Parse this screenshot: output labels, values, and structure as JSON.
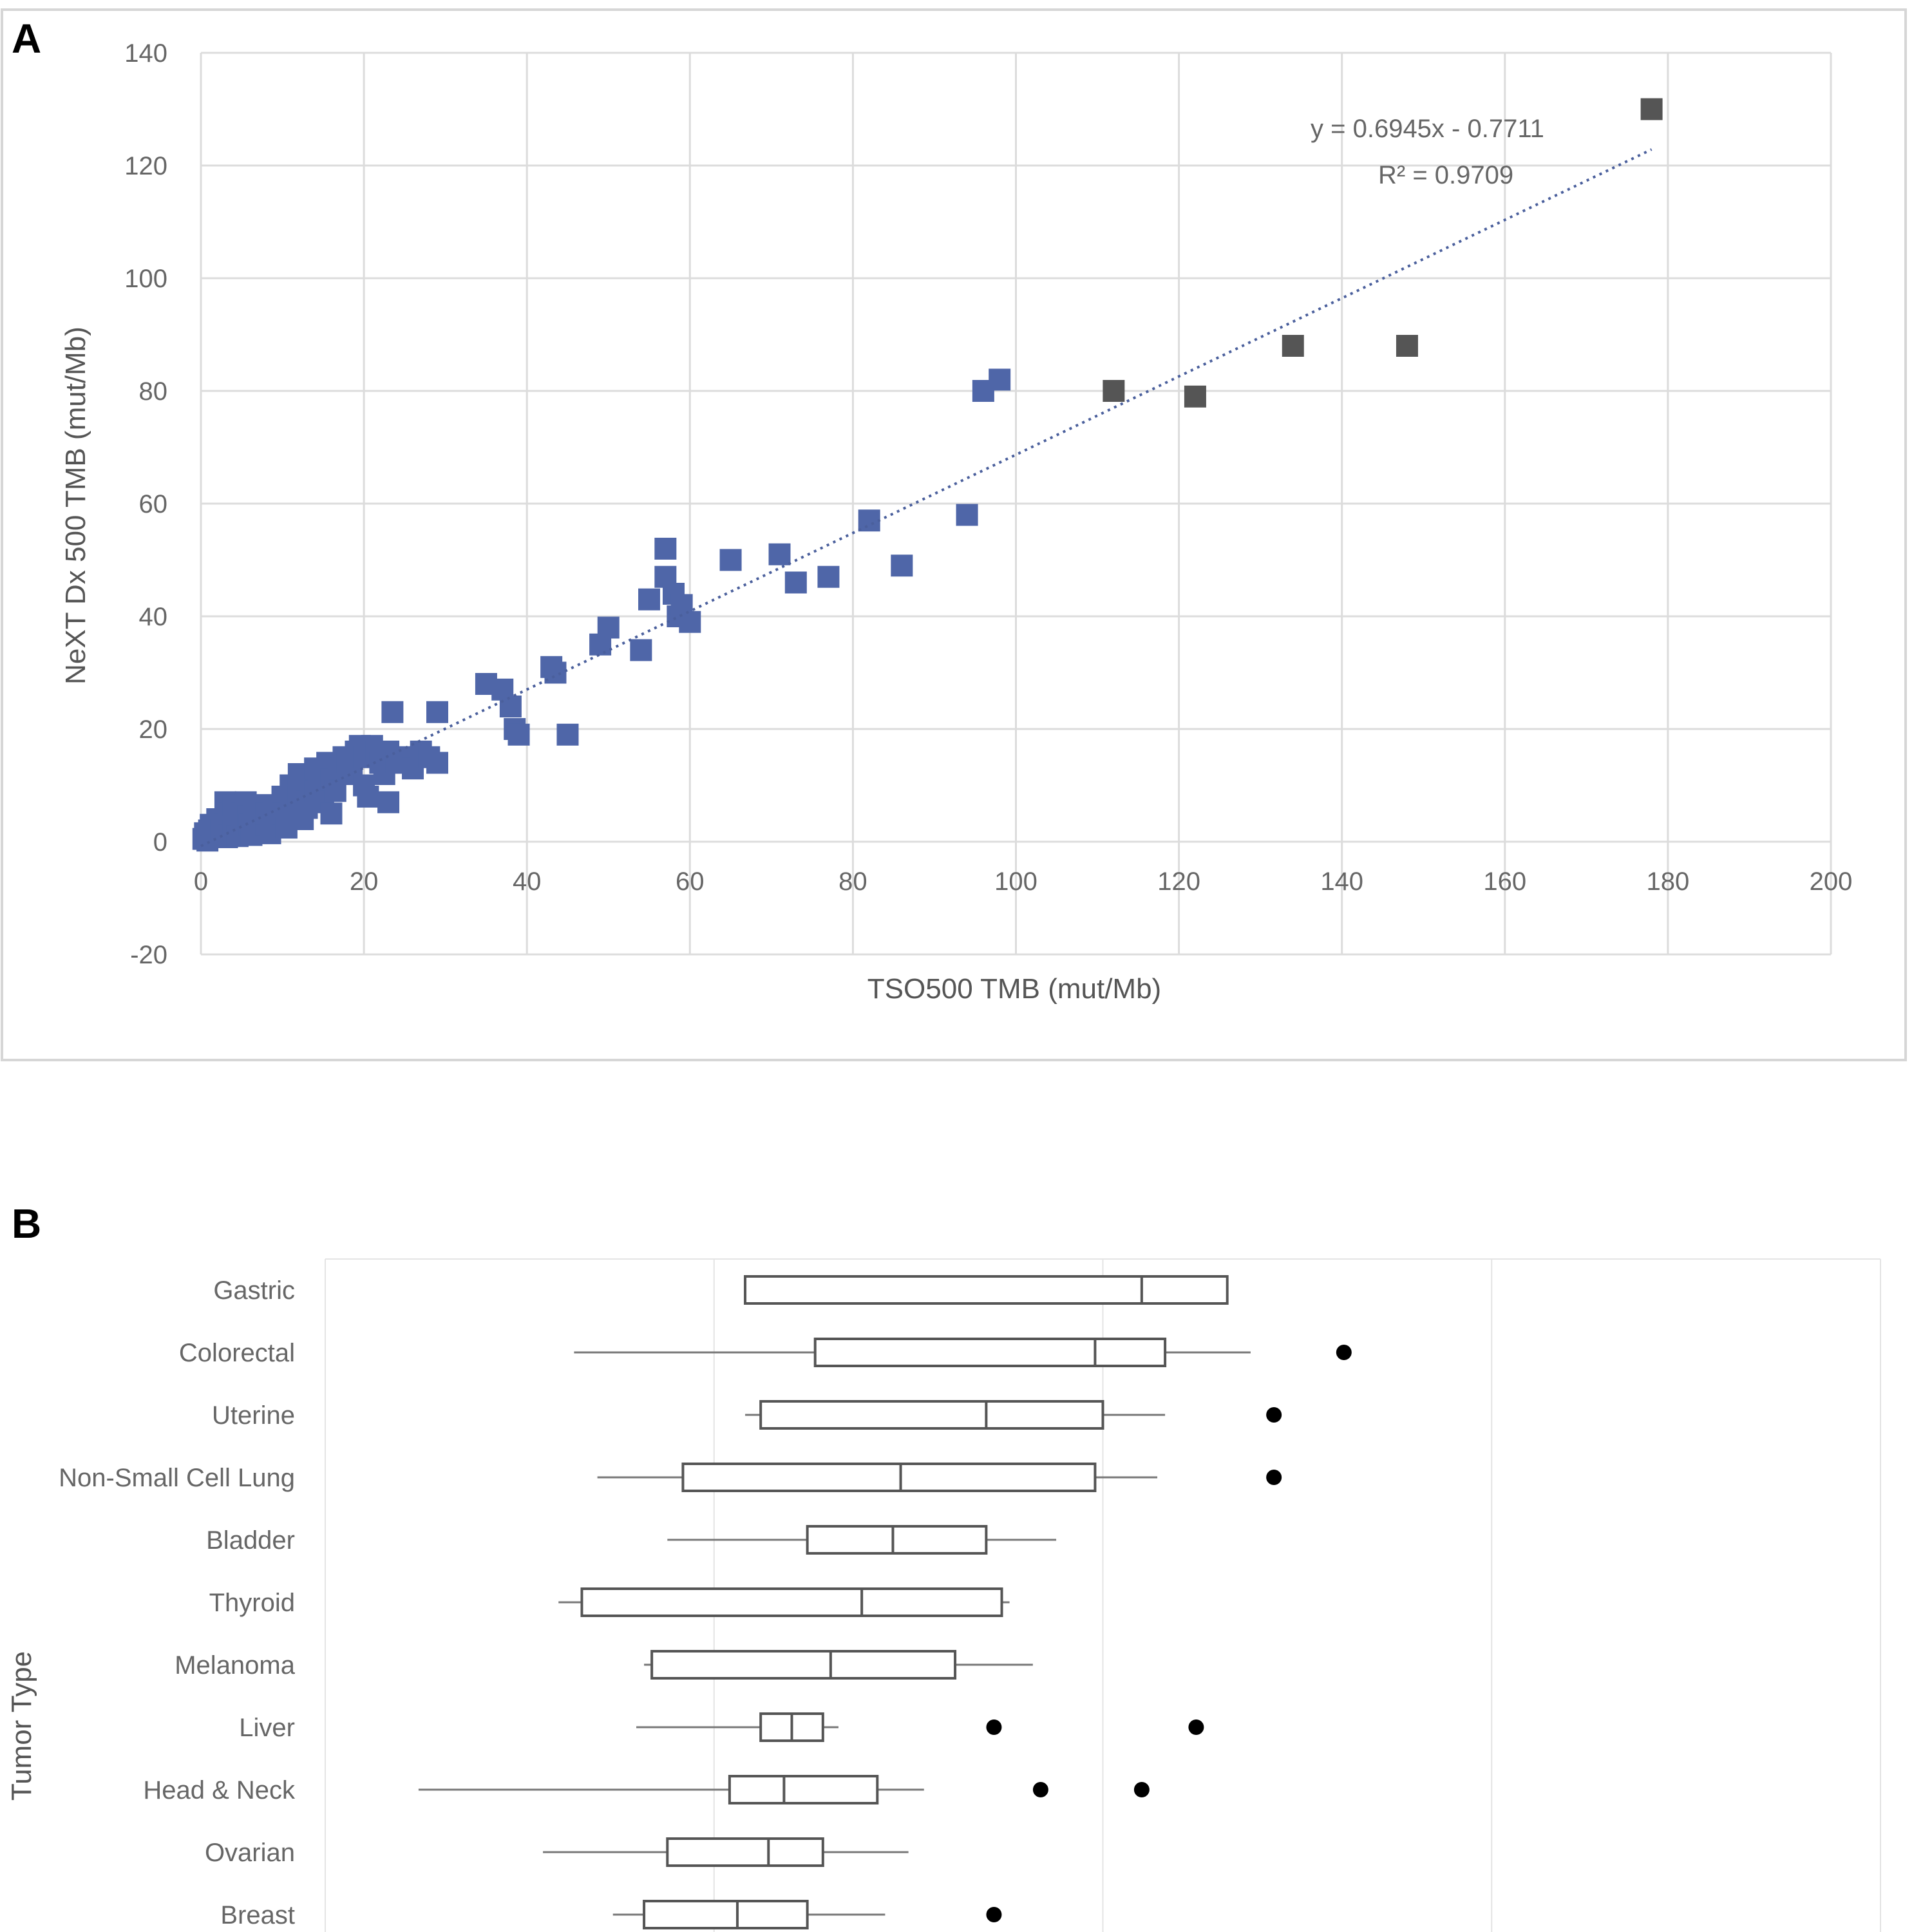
{
  "panels": {
    "a": {
      "label": "A"
    },
    "b": {
      "label": "B"
    }
  },
  "colors": {
    "marker": "#4f66a8",
    "marker_dark": "#555555",
    "trendline": "#4a5f9c",
    "grid": "#dcdcdc",
    "axis_text": "#666666",
    "box_stroke": "#555555",
    "outlier": "#000000"
  },
  "chart_data": [
    {
      "type": "scatter",
      "xlabel": "TSO500 TMB (mut/Mb)",
      "ylabel": "NeXT Dx 500 TMB (mut/Mb)",
      "xlim": [
        0,
        200
      ],
      "ylim": [
        -20,
        140
      ],
      "x_ticks": [
        "0",
        "20",
        "40",
        "60",
        "80",
        "100",
        "120",
        "140",
        "160",
        "180",
        "200"
      ],
      "y_ticks": [
        "-20",
        "0",
        "20",
        "40",
        "60",
        "80",
        "100",
        "120",
        "140"
      ],
      "grid": true,
      "trendline": {
        "equation": "y = 0.6945x - 0.7711",
        "r_squared": "R² = 0.9709",
        "slope": 0.6945,
        "intercept": -0.7711,
        "x_range": [
          0,
          178
        ],
        "style": "dotted"
      },
      "series": [
        {
          "points": [
            [
              0.3,
              0.5
            ],
            [
              0.5,
              1.5
            ],
            [
              0.8,
              0.2
            ],
            [
              1,
              2
            ],
            [
              1.2,
              3
            ],
            [
              1.5,
              0.8
            ],
            [
              2,
              1.5
            ],
            [
              2,
              4
            ],
            [
              2.5,
              2.2
            ],
            [
              3,
              7
            ],
            [
              3,
              3
            ],
            [
              3.2,
              0.8
            ],
            [
              3.5,
              5
            ],
            [
              4,
              6.5
            ],
            [
              4,
              2
            ],
            [
              4.3,
              4
            ],
            [
              4.5,
              1
            ],
            [
              5,
              5
            ],
            [
              5,
              2.5
            ],
            [
              5.5,
              7
            ],
            [
              5.8,
              4.5
            ],
            [
              6,
              3
            ],
            [
              6.2,
              1.2
            ],
            [
              6.5,
              6
            ],
            [
              7,
              4
            ],
            [
              7,
              2
            ],
            [
              7.5,
              6.5
            ],
            [
              8,
              3
            ],
            [
              8,
              5
            ],
            [
              8.5,
              1.5
            ],
            [
              9,
              6
            ],
            [
              9,
              3.5
            ],
            [
              9.5,
              4.8
            ],
            [
              10,
              8
            ],
            [
              10,
              5
            ],
            [
              10.5,
              2.5
            ],
            [
              11,
              7
            ],
            [
              11,
              10
            ],
            [
              11.5,
              6
            ],
            [
              12,
              12
            ],
            [
              12,
              8
            ],
            [
              12.5,
              4
            ],
            [
              13,
              11
            ],
            [
              13,
              6
            ],
            [
              13.5,
              9
            ],
            [
              14,
              13
            ],
            [
              14,
              9
            ],
            [
              14.5,
              10
            ],
            [
              15,
              12
            ],
            [
              15,
              7
            ],
            [
              15.5,
              14
            ],
            [
              16,
              11
            ],
            [
              16,
              5
            ],
            [
              16.5,
              9
            ],
            [
              17,
              13
            ],
            [
              17.5,
              15
            ],
            [
              18,
              14
            ],
            [
              18.5,
              12
            ],
            [
              19,
              16
            ],
            [
              19.5,
              17
            ],
            [
              20,
              15
            ],
            [
              20,
              10
            ],
            [
              20.5,
              8
            ],
            [
              21,
              17
            ],
            [
              21.5,
              16
            ],
            [
              22,
              14
            ],
            [
              22.5,
              12
            ],
            [
              23,
              16
            ],
            [
              23,
              7
            ],
            [
              23.5,
              23
            ],
            [
              24,
              14
            ],
            [
              25,
              15
            ],
            [
              26,
              13
            ],
            [
              27,
              16
            ],
            [
              28,
              15
            ],
            [
              29,
              23
            ],
            [
              29,
              14
            ],
            [
              35,
              28
            ],
            [
              37,
              27
            ],
            [
              38,
              24
            ],
            [
              38.5,
              20
            ],
            [
              39,
              19
            ],
            [
              43,
              31
            ],
            [
              43.5,
              30
            ],
            [
              45,
              19
            ],
            [
              49,
              35
            ],
            [
              50,
              38
            ],
            [
              54,
              34
            ],
            [
              55,
              43
            ],
            [
              57,
              52
            ],
            [
              57,
              47
            ],
            [
              58,
              44
            ],
            [
              58.5,
              40
            ],
            [
              59,
              42
            ],
            [
              60,
              39
            ],
            [
              65,
              50
            ],
            [
              71,
              51
            ],
            [
              73,
              46
            ],
            [
              77,
              47
            ],
            [
              82,
              57
            ],
            [
              86,
              49
            ],
            [
              94,
              58
            ],
            [
              96,
              80
            ],
            [
              98,
              82
            ],
            [
              112,
              80
            ],
            [
              122,
              79
            ],
            [
              134,
              88
            ],
            [
              148,
              88
            ],
            [
              178,
              130
            ]
          ]
        }
      ]
    },
    {
      "type": "box",
      "ylabel": "Tumor Type",
      "orientation": "horizontal",
      "categories": [
        "Gastric",
        "Colorectal",
        "Uterine",
        "Non-Small Cell Lung",
        "Bladder",
        "Thyroid",
        "Melanoma",
        "Liver",
        "Head & Neck",
        "Ovarian",
        "Breast"
      ],
      "xlim": [
        0,
        100
      ],
      "boxes": [
        {
          "whisker_low": 27,
          "q1": 27,
          "median": 52.5,
          "q3": 58,
          "whisker_high": 58,
          "outliers": []
        },
        {
          "whisker_low": 16,
          "q1": 31.5,
          "median": 49.5,
          "q3": 54,
          "whisker_high": 59.5,
          "outliers": [
            65.5
          ]
        },
        {
          "whisker_low": 27,
          "q1": 28,
          "median": 42.5,
          "q3": 50,
          "whisker_high": 54,
          "outliers": [
            61
          ]
        },
        {
          "whisker_low": 17.5,
          "q1": 23,
          "median": 37,
          "q3": 49.5,
          "whisker_high": 53.5,
          "outliers": [
            61
          ]
        },
        {
          "whisker_low": 22,
          "q1": 31,
          "median": 36.5,
          "q3": 42.5,
          "whisker_high": 47,
          "outliers": []
        },
        {
          "whisker_low": 15,
          "q1": 16.5,
          "median": 34.5,
          "q3": 43.5,
          "whisker_high": 44,
          "outliers": []
        },
        {
          "whisker_low": 20.5,
          "q1": 21,
          "median": 32.5,
          "q3": 40.5,
          "whisker_high": 45.5,
          "outliers": []
        },
        {
          "whisker_low": 20,
          "q1": 28,
          "median": 30,
          "q3": 32,
          "whisker_high": 33,
          "outliers": [
            43,
            56
          ]
        },
        {
          "whisker_low": 6,
          "q1": 26,
          "median": 29.5,
          "q3": 35.5,
          "whisker_high": 38.5,
          "outliers": [
            46,
            52.5
          ]
        },
        {
          "whisker_low": 14,
          "q1": 22,
          "median": 28.5,
          "q3": 32,
          "whisker_high": 37.5,
          "outliers": []
        },
        {
          "whisker_low": 18.5,
          "q1": 20.5,
          "median": 26.5,
          "q3": 31,
          "whisker_high": 36,
          "outliers": [
            43
          ]
        }
      ]
    }
  ]
}
